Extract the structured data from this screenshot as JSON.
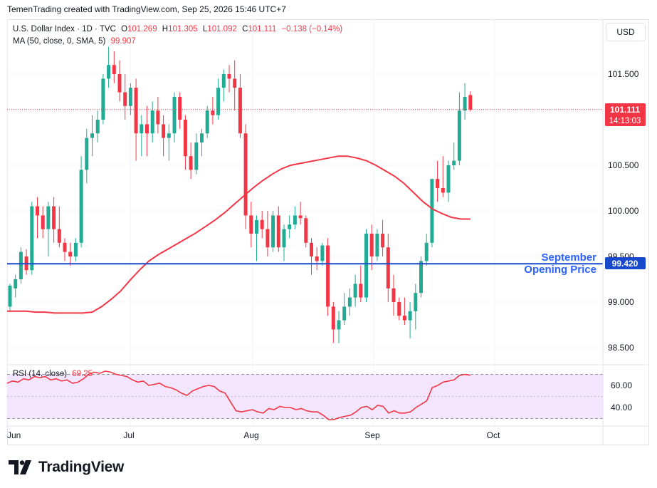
{
  "header": {
    "credit": "TemenTrading created with TradingView.com, Sep 25, 2026 15:46 UTC+7"
  },
  "legend": {
    "symbol": "U.S. Dollar Index · 1D · TVC",
    "open_label": "O",
    "open": "101.269",
    "high_label": "H",
    "high": "101.305",
    "low_label": "L",
    "low": "101.092",
    "close_label": "C",
    "close": "101.111",
    "change": "−0.138 (−0.14%)",
    "ma_label": "MA (50, close, 0, SMA, 5)",
    "ma_value": "99.907",
    "rsi_label": "RSI (14, close)",
    "rsi_value": "69.25"
  },
  "currency_button": "USD",
  "price_axis": {
    "ticks": [
      "101.500",
      "100.500",
      "100.000",
      "99.500",
      "99.000",
      "98.500"
    ]
  },
  "rsi_axis": {
    "ticks": [
      "60.00",
      "40.00"
    ]
  },
  "time_axis": {
    "labels": [
      "Jun",
      "Jul",
      "Aug",
      "Sep",
      "Oct"
    ]
  },
  "last_price": {
    "value": "101.111",
    "countdown": "14:13:03"
  },
  "annotation": {
    "line1": "September",
    "line2": "Opening Price",
    "level": "99.420"
  },
  "brand": "TradingView",
  "colors": {
    "up": "#22ab94",
    "down": "#f23645",
    "ma": "#f23645",
    "level": "#1848cc",
    "rsi": "#f23645",
    "rsi_band": "#f3e5fd"
  },
  "chart_data": [
    {
      "type": "candlestick",
      "title": "U.S. Dollar Index · 1D · TVC",
      "ylim": [
        98.3,
        101.85
      ],
      "y_ticks": [
        98.5,
        99.0,
        99.5,
        100.0,
        100.5,
        101.5
      ],
      "candles": [
        [
          98.95,
          99.2,
          98.9,
          99.18
        ],
        [
          99.15,
          99.3,
          99.05,
          99.25
        ],
        [
          99.25,
          99.6,
          99.2,
          99.55
        ],
        [
          99.5,
          99.58,
          99.3,
          99.35
        ],
        [
          99.35,
          100.1,
          99.3,
          100.05
        ],
        [
          100.05,
          100.15,
          99.7,
          99.95
        ],
        [
          99.95,
          100.05,
          99.7,
          99.8
        ],
        [
          99.8,
          100.1,
          99.5,
          100.05
        ],
        [
          100.05,
          100.15,
          99.65,
          99.8
        ],
        [
          99.8,
          100.05,
          99.6,
          99.65
        ],
        [
          99.65,
          99.7,
          99.45,
          99.55
        ],
        [
          99.55,
          99.65,
          99.4,
          99.5
        ],
        [
          99.5,
          99.7,
          99.45,
          99.65
        ],
        [
          99.65,
          100.6,
          99.6,
          100.45
        ],
        [
          100.45,
          100.9,
          100.3,
          100.8
        ],
        [
          100.8,
          101.05,
          100.6,
          100.85
        ],
        [
          100.85,
          101.1,
          100.75,
          101.0
        ],
        [
          101.0,
          101.5,
          100.95,
          101.45
        ],
        [
          101.45,
          101.8,
          101.35,
          101.6
        ],
        [
          101.6,
          101.75,
          101.4,
          101.5
        ],
        [
          101.5,
          101.65,
          101.2,
          101.3
        ],
        [
          101.3,
          101.5,
          101.0,
          101.15
        ],
        [
          101.15,
          101.4,
          101.05,
          101.35
        ],
        [
          101.35,
          101.45,
          100.55,
          100.85
        ],
        [
          100.85,
          101.05,
          100.6,
          100.95
        ],
        [
          100.95,
          101.15,
          100.6,
          100.85
        ],
        [
          100.85,
          101.2,
          100.75,
          101.1
        ],
        [
          101.1,
          101.25,
          100.85,
          100.95
        ],
        [
          100.95,
          101.05,
          100.6,
          100.8
        ],
        [
          100.8,
          100.95,
          100.55,
          100.85
        ],
        [
          100.85,
          101.3,
          100.75,
          101.25
        ],
        [
          101.25,
          101.3,
          100.9,
          101.0
        ],
        [
          101.0,
          101.05,
          100.45,
          100.6
        ],
        [
          100.6,
          100.75,
          100.35,
          100.45
        ],
        [
          100.45,
          100.85,
          100.4,
          100.75
        ],
        [
          100.75,
          100.9,
          100.6,
          100.85
        ],
        [
          100.85,
          101.15,
          100.8,
          101.1
        ],
        [
          101.1,
          101.25,
          100.95,
          101.05
        ],
        [
          101.05,
          101.45,
          101.0,
          101.35
        ],
        [
          101.35,
          101.55,
          101.2,
          101.5
        ],
        [
          101.5,
          101.6,
          101.3,
          101.45
        ],
        [
          101.45,
          101.65,
          101.1,
          101.35
        ],
        [
          101.35,
          101.5,
          100.8,
          100.85
        ],
        [
          100.85,
          100.95,
          99.8,
          99.95
        ],
        [
          99.95,
          100.1,
          99.6,
          99.75
        ],
        [
          99.75,
          99.95,
          99.45,
          99.9
        ],
        [
          99.9,
          100.0,
          99.7,
          99.8
        ],
        [
          99.8,
          100.0,
          99.5,
          99.6
        ],
        [
          99.6,
          100.0,
          99.55,
          99.95
        ],
        [
          99.95,
          100.05,
          99.55,
          99.6
        ],
        [
          99.6,
          99.85,
          99.45,
          99.8
        ],
        [
          99.8,
          99.95,
          99.7,
          99.85
        ],
        [
          99.85,
          100.05,
          99.8,
          99.95
        ],
        [
          99.95,
          100.1,
          99.85,
          99.92
        ],
        [
          99.92,
          99.95,
          99.6,
          99.65
        ],
        [
          99.65,
          99.7,
          99.3,
          99.5
        ],
        [
          99.5,
          99.6,
          99.35,
          99.45
        ],
        [
          99.45,
          99.65,
          99.4,
          99.62
        ],
        [
          99.62,
          99.7,
          98.85,
          98.95
        ],
        [
          98.95,
          99.0,
          98.55,
          98.7
        ],
        [
          98.7,
          98.9,
          98.55,
          98.8
        ],
        [
          98.8,
          99.1,
          98.75,
          98.95
        ],
        [
          98.95,
          99.15,
          98.85,
          99.05
        ],
        [
          99.05,
          99.3,
          98.95,
          99.2
        ],
        [
          99.2,
          99.4,
          99.0,
          99.05
        ],
        [
          99.05,
          99.8,
          99.0,
          99.75
        ],
        [
          99.75,
          99.85,
          99.35,
          99.5
        ],
        [
          99.5,
          99.8,
          99.45,
          99.75
        ],
        [
          99.75,
          99.9,
          99.5,
          99.6
        ],
        [
          99.6,
          99.75,
          99.0,
          99.15
        ],
        [
          99.15,
          99.3,
          98.85,
          99.0
        ],
        [
          99.0,
          99.05,
          98.8,
          98.85
        ],
        [
          98.85,
          99.05,
          98.75,
          98.8
        ],
        [
          98.8,
          99.0,
          98.6,
          98.9
        ],
        [
          98.9,
          99.2,
          98.7,
          99.1
        ],
        [
          99.1,
          99.5,
          99.05,
          99.45
        ],
        [
          99.45,
          99.75,
          99.4,
          99.65
        ],
        [
          99.65,
          100.35,
          99.6,
          100.35
        ],
        [
          100.35,
          100.55,
          100.1,
          100.25
        ],
        [
          100.25,
          100.6,
          100.15,
          100.2
        ],
        [
          100.2,
          100.55,
          100.1,
          100.5
        ],
        [
          100.5,
          100.75,
          100.45,
          100.55
        ],
        [
          100.55,
          101.3,
          100.5,
          101.1
        ],
        [
          101.1,
          101.4,
          101.0,
          101.25
        ],
        [
          101.27,
          101.31,
          101.09,
          101.11
        ]
      ],
      "ma_series": [
        98.9,
        98.9,
        98.9,
        98.89,
        98.89,
        98.88,
        98.88,
        98.88,
        98.88,
        98.89,
        98.95,
        99.03,
        99.12,
        99.24,
        99.35,
        99.45,
        99.52,
        99.58,
        99.64,
        99.7,
        99.76,
        99.83,
        99.9,
        99.98,
        100.07,
        100.16,
        100.25,
        100.33,
        100.4,
        100.46,
        100.5,
        100.52,
        100.54,
        100.56,
        100.58,
        100.6,
        100.6,
        100.58,
        100.55,
        100.5,
        100.44,
        100.38,
        100.3,
        100.2,
        100.1,
        100.02,
        99.97,
        99.93,
        99.91,
        99.91
      ]
    },
    {
      "type": "line",
      "title": "RSI (14, close)",
      "ylim": [
        25,
        75
      ],
      "y_ticks": [
        40,
        60
      ],
      "band": [
        30,
        70
      ],
      "values": [
        62,
        64,
        63,
        66,
        65,
        68,
        67,
        68,
        65,
        66,
        64,
        65,
        62,
        63,
        66,
        70,
        72,
        71,
        73,
        72,
        70,
        69,
        68,
        65,
        63,
        64,
        60,
        61,
        62,
        59,
        58,
        56,
        53,
        51,
        55,
        57,
        59,
        60,
        59,
        55,
        53,
        45,
        37,
        36,
        37,
        38,
        36,
        35,
        39,
        38,
        41,
        40,
        40,
        38,
        39,
        37,
        36,
        36,
        33,
        29,
        29,
        31,
        32,
        33,
        36,
        40,
        41,
        38,
        42,
        41,
        35,
        37,
        35,
        35,
        36,
        40,
        43,
        46,
        58,
        60,
        63,
        64,
        65,
        69,
        70,
        69.25
      ]
    }
  ]
}
